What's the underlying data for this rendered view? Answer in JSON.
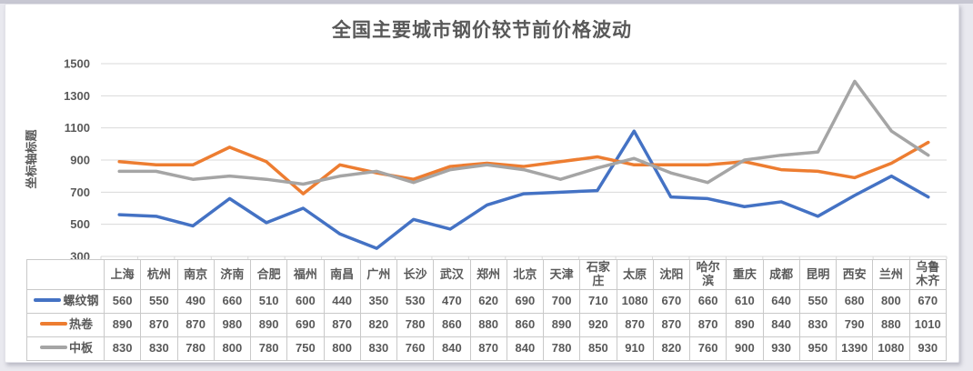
{
  "chart_data": {
    "type": "line",
    "title": "全国主要城市钢价较节前价格波动",
    "ylabel": "坐标轴标题",
    "xlabel": "",
    "ylim": [
      300,
      1500
    ],
    "yticks": [
      300,
      500,
      700,
      900,
      1100,
      1300,
      1500
    ],
    "grid": true,
    "legend_position": "data-table-left",
    "data_table_shown": true,
    "categories": [
      "上海",
      "杭州",
      "南京",
      "济南",
      "合肥",
      "福州",
      "南昌",
      "广州",
      "长沙",
      "武汉",
      "郑州",
      "北京",
      "天津",
      "石家庄",
      "太原",
      "沈阳",
      "哈尔滨",
      "重庆",
      "成都",
      "昆明",
      "西安",
      "兰州",
      "乌鲁木齐"
    ],
    "series": [
      {
        "name": "螺纹钢",
        "color": "#4472C4",
        "values": [
          560,
          550,
          490,
          660,
          510,
          600,
          440,
          350,
          530,
          470,
          620,
          690,
          700,
          710,
          1080,
          670,
          660,
          610,
          640,
          550,
          680,
          800,
          670
        ]
      },
      {
        "name": "热卷",
        "color": "#ED7D31",
        "values": [
          890,
          870,
          870,
          980,
          890,
          690,
          870,
          820,
          780,
          860,
          880,
          860,
          890,
          920,
          870,
          870,
          870,
          890,
          840,
          830,
          790,
          880,
          1010
        ]
      },
      {
        "name": "中板",
        "color": "#A5A5A5",
        "values": [
          830,
          830,
          780,
          800,
          780,
          750,
          800,
          830,
          760,
          840,
          870,
          840,
          780,
          850,
          910,
          820,
          760,
          900,
          930,
          950,
          1390,
          1080,
          930
        ]
      }
    ],
    "colors": {
      "gridline": "#d9d9d9",
      "axis_text": "#595959",
      "table_border": "#c9c9c9"
    }
  }
}
